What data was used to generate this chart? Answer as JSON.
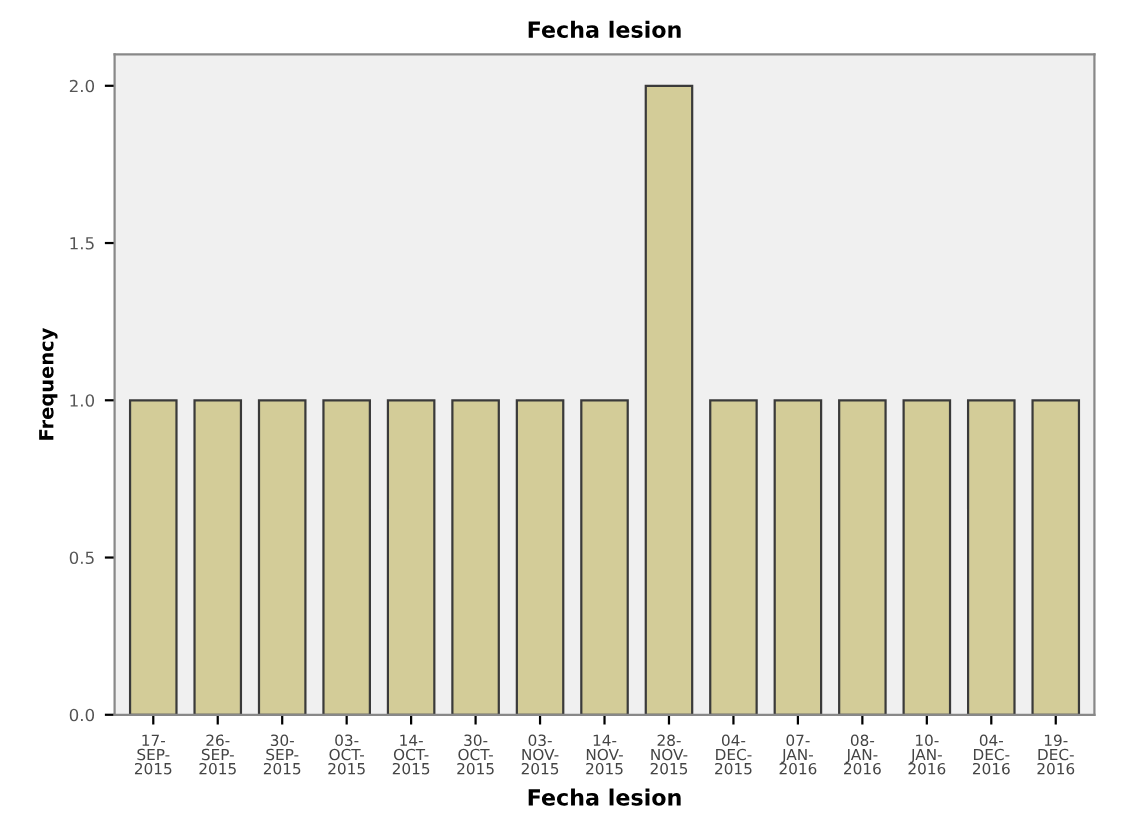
{
  "chart_data": {
    "type": "bar",
    "title": "Fecha lesion",
    "xlabel": "Fecha lesion",
    "ylabel": "Frequency",
    "categories": [
      "17-\nSEP-\n2015",
      "26-\nSEP-\n2015",
      "30-\nSEP-\n2015",
      "03-\nOCT-\n2015",
      "14-\nOCT-\n2015",
      "30-\nOCT-\n2015",
      "03-\nNOV-\n2015",
      "14-\nNOV-\n2015",
      "28-\nNOV-\n2015",
      "04-\nDEC-\n2015",
      "07-\nJAN-\n2016",
      "08-\nJAN-\n2016",
      "10-\nJAN-\n2016",
      "04-\nDEC-\n2016",
      "19-\nDEC-\n2016"
    ],
    "values": [
      1,
      1,
      1,
      1,
      1,
      1,
      1,
      1,
      2,
      1,
      1,
      1,
      1,
      1,
      1
    ],
    "color": "#d3cc98",
    "ylim": [
      0,
      2.1
    ],
    "yticks": [
      {
        "value": 0,
        "label": "0.0"
      },
      {
        "value": 0.5,
        "label": "0.5"
      },
      {
        "value": 1,
        "label": "1.0"
      },
      {
        "value": 1.5,
        "label": "1.5"
      },
      {
        "value": 2,
        "label": "2.0"
      }
    ],
    "grid": false,
    "legend": false
  }
}
